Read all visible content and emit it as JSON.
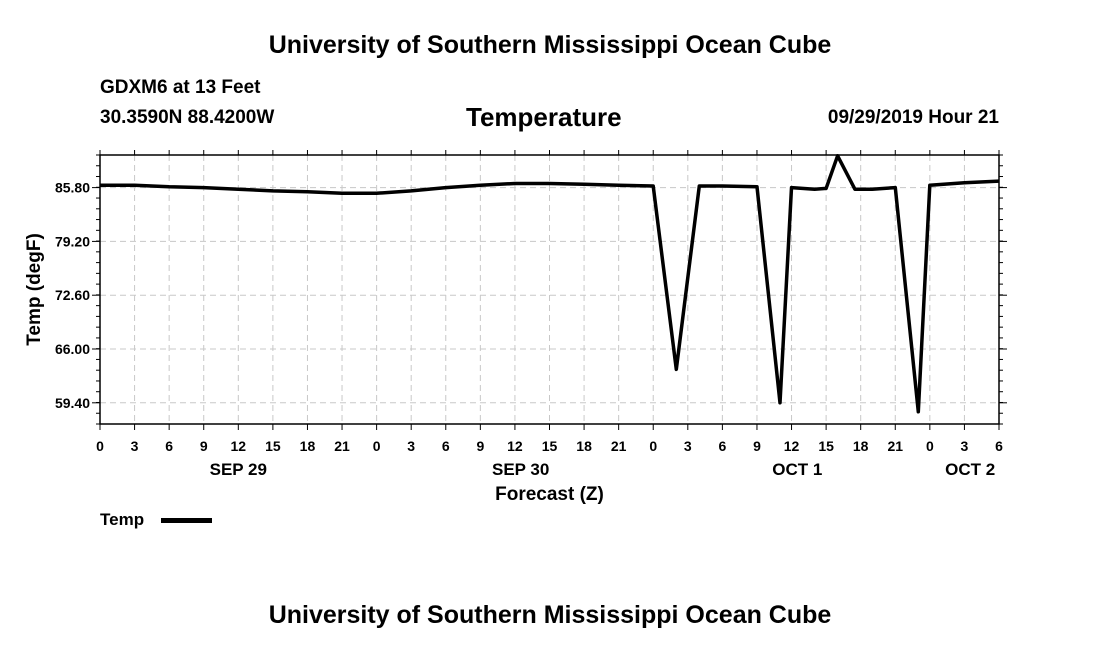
{
  "header": {
    "title": "University of Southern Mississippi Ocean Cube",
    "station": "GDXM6 at 13 Feet",
    "coordinates": "30.3590N 88.4200W",
    "datetime": "09/29/2019 Hour 21"
  },
  "footer": {
    "title": "University of Southern Mississippi Ocean Cube"
  },
  "chart_data": {
    "type": "line",
    "title": "Temperature",
    "xlabel": "Forecast (Z)",
    "ylabel": "Temp (degF)",
    "xlim": [
      0,
      78
    ],
    "ylim": [
      56.8,
      89.8
    ],
    "x_ticks": [
      0,
      3,
      6,
      9,
      12,
      15,
      18,
      21,
      24,
      27,
      30,
      33,
      36,
      39,
      42,
      45,
      48,
      51,
      54,
      57,
      60,
      63,
      66,
      69,
      72,
      75,
      78
    ],
    "x_tick_labels": [
      "0",
      "3",
      "6",
      "9",
      "12",
      "15",
      "18",
      "21",
      "0",
      "3",
      "6",
      "9",
      "12",
      "15",
      "18",
      "21",
      "0",
      "3",
      "6",
      "9",
      "12",
      "15",
      "18",
      "21",
      "0",
      "3",
      "6"
    ],
    "y_ticks": [
      59.4,
      66.0,
      72.6,
      79.2,
      85.8
    ],
    "y_tick_labels": [
      "59.40",
      "66.00",
      "72.60",
      "79.20",
      "85.80"
    ],
    "date_labels": [
      {
        "label": "SEP 29",
        "x": 12
      },
      {
        "label": "SEP 30",
        "x": 36.5
      },
      {
        "label": "OCT 1",
        "x": 60.5
      },
      {
        "label": "OCT 2",
        "x": 75.5
      }
    ],
    "grid": true,
    "legend_placement": "bottom-left",
    "series": [
      {
        "name": "Temp",
        "color": "#000000",
        "x": [
          0,
          3,
          6,
          9,
          12,
          15,
          18,
          21,
          24,
          27,
          30,
          33,
          36,
          39,
          42,
          45,
          48,
          50,
          52,
          54,
          57,
          59,
          60,
          62,
          63,
          64,
          65.5,
          67,
          69,
          71,
          72,
          75,
          78
        ],
        "y": [
          86.1,
          86.1,
          85.9,
          85.8,
          85.6,
          85.4,
          85.3,
          85.1,
          85.1,
          85.4,
          85.8,
          86.1,
          86.3,
          86.3,
          86.2,
          86.1,
          86.0,
          63.5,
          86.0,
          86.0,
          85.9,
          59.4,
          85.8,
          85.6,
          85.7,
          89.7,
          85.6,
          85.6,
          85.8,
          58.3,
          86.1,
          86.4,
          86.6
        ]
      }
    ]
  }
}
